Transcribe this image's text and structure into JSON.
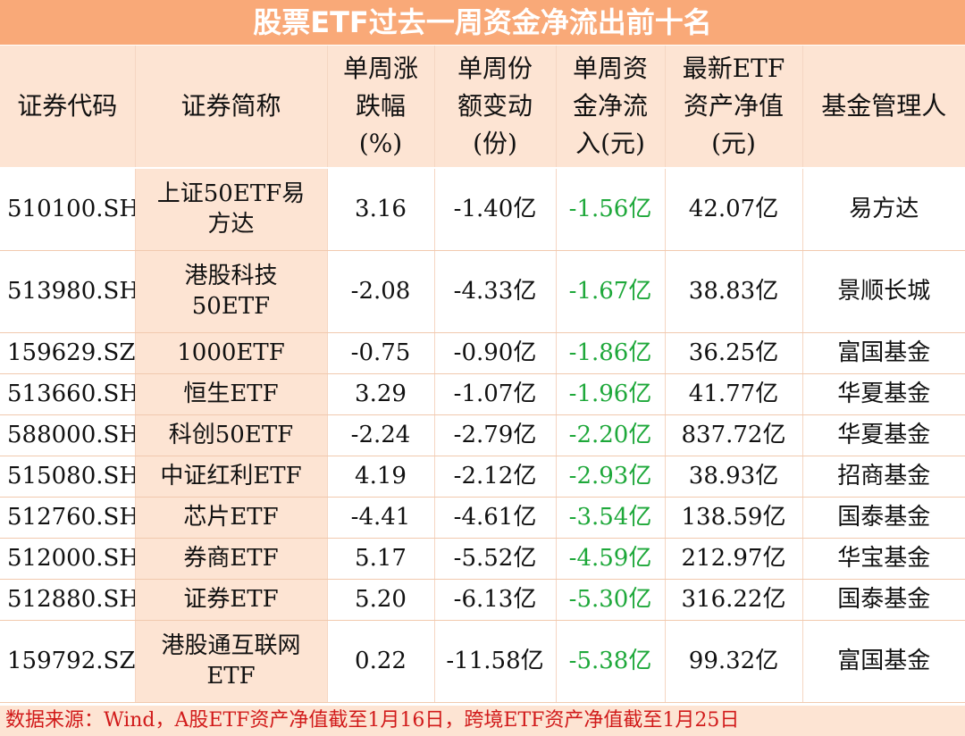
{
  "title": "股票ETF过去一周资金净流出前十名",
  "headers": [
    "证券代码",
    "证券简称",
    "单周涨\n跌幅\n(%)",
    "单周份\n额变动\n(份)",
    "单周资\n金净流\n入(元)",
    "最新ETF\n资产净值\n(元)",
    "基金管理人"
  ],
  "rows": [
    {
      "code": "510100.SH",
      "name": "上证50ETF易\n方达",
      "chg": "3.16",
      "share": "-1.40亿",
      "flow": "-1.56亿",
      "nav": "42.07亿",
      "mgr": "易方达"
    },
    {
      "code": "513980.SH",
      "name": "港股科技\n50ETF",
      "chg": "-2.08",
      "share": "-4.33亿",
      "flow": "-1.67亿",
      "nav": "38.83亿",
      "mgr": "景顺长城"
    },
    {
      "code": "159629.SZ",
      "name": "1000ETF",
      "chg": "-0.75",
      "share": "-0.90亿",
      "flow": "-1.86亿",
      "nav": "36.25亿",
      "mgr": "富国基金"
    },
    {
      "code": "513660.SH",
      "name": "恒生ETF",
      "chg": "3.29",
      "share": "-1.07亿",
      "flow": "-1.96亿",
      "nav": "41.77亿",
      "mgr": "华夏基金"
    },
    {
      "code": "588000.SH",
      "name": "科创50ETF",
      "chg": "-2.24",
      "share": "-2.79亿",
      "flow": "-2.20亿",
      "nav": "837.72亿",
      "mgr": "华夏基金"
    },
    {
      "code": "515080.SH",
      "name": "中证红利ETF",
      "chg": "4.19",
      "share": "-2.12亿",
      "flow": "-2.93亿",
      "nav": "38.93亿",
      "mgr": "招商基金"
    },
    {
      "code": "512760.SH",
      "name": "芯片ETF",
      "chg": "-4.41",
      "share": "-4.61亿",
      "flow": "-3.54亿",
      "nav": "138.59亿",
      "mgr": "国泰基金"
    },
    {
      "code": "512000.SH",
      "name": "券商ETF",
      "chg": "5.17",
      "share": "-5.52亿",
      "flow": "-4.59亿",
      "nav": "212.97亿",
      "mgr": "华宝基金"
    },
    {
      "code": "512880.SH",
      "name": "证券ETF",
      "chg": "5.20",
      "share": "-6.13亿",
      "flow": "-5.30亿",
      "nav": "316.22亿",
      "mgr": "国泰基金"
    },
    {
      "code": "159792.SZ",
      "name": "港股通互联网\nETF",
      "chg": "0.22",
      "share": "-11.58亿",
      "flow": "-5.38亿",
      "nav": "99.32亿",
      "mgr": "富国基金"
    }
  ],
  "source": "数据来源：Wind，A股ETF资产净值截至1月16日，跨境ETF资产净值截至1月25日",
  "colors": {
    "header_bg": "#f9a978",
    "band_bg": "#fde4d3",
    "outflow_text": "#1ea83a",
    "source_text": "#d11a1a"
  }
}
